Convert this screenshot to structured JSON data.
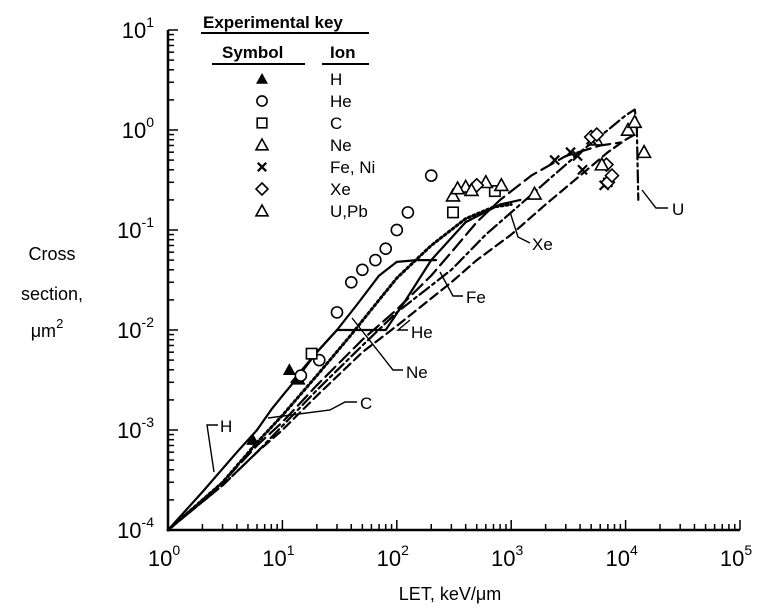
{
  "chart_data": {
    "type": "scatter",
    "title": "",
    "xlabel": "LET, keV/μm",
    "ylabel_lines": [
      "Cross",
      "section,"
    ],
    "ylabel_unit": {
      "base": "μm",
      "sup": "2"
    },
    "x_scale": "log",
    "y_scale": "log",
    "xlim": [
      1,
      100000
    ],
    "ylim": [
      0.0001,
      10
    ],
    "x_ticks": [
      {
        "base": "10",
        "exp": "0"
      },
      {
        "base": "10",
        "exp": "1"
      },
      {
        "base": "10",
        "exp": "2"
      },
      {
        "base": "10",
        "exp": "3"
      },
      {
        "base": "10",
        "exp": "4"
      },
      {
        "base": "10",
        "exp": "5"
      }
    ],
    "y_ticks": [
      {
        "base": "10",
        "exp": "-4"
      },
      {
        "base": "10",
        "exp": "-3"
      },
      {
        "base": "10",
        "exp": "-2"
      },
      {
        "base": "10",
        "exp": "-1"
      },
      {
        "base": "10",
        "exp": "0"
      },
      {
        "base": "10",
        "exp": "1"
      }
    ],
    "legend": {
      "title": "Experimental key",
      "col1": "Symbol",
      "col2": "Ion",
      "placement": "top-left"
    },
    "series": [
      {
        "name": "H",
        "marker": "triangle-filled",
        "points": [
          [
            5.5,
            0.0008
          ],
          [
            11.5,
            0.004
          ],
          [
            14,
            0.0032
          ]
        ]
      },
      {
        "name": "He",
        "marker": "circle",
        "points": [
          [
            14.5,
            0.0035
          ],
          [
            21,
            0.005
          ],
          [
            30,
            0.015
          ],
          [
            40,
            0.03
          ],
          [
            50,
            0.04
          ],
          [
            65,
            0.05
          ],
          [
            80,
            0.065
          ],
          [
            100,
            0.1
          ],
          [
            125,
            0.15
          ],
          [
            200,
            0.35
          ]
        ]
      },
      {
        "name": "C",
        "marker": "square",
        "points": [
          [
            18,
            0.0058
          ],
          [
            310,
            0.15
          ],
          [
            720,
            0.245
          ]
        ]
      },
      {
        "name": "Ne",
        "marker": "triangle-open",
        "points": [
          [
            310,
            0.22
          ],
          [
            400,
            0.27
          ],
          [
            600,
            0.3
          ],
          [
            820,
            0.28
          ],
          [
            5500,
            0.8
          ]
        ]
      },
      {
        "name": "Fe, Ni",
        "marker": "x",
        "points": [
          [
            2400,
            0.5
          ],
          [
            3300,
            0.6
          ],
          [
            3800,
            0.55
          ],
          [
            4200,
            0.4
          ],
          [
            5000,
            0.8
          ],
          [
            6500,
            0.28
          ],
          [
            7000,
            0.3
          ]
        ]
      },
      {
        "name": "Xe",
        "marker": "diamond",
        "points": [
          [
            500,
            0.28
          ],
          [
            5000,
            0.85
          ],
          [
            5600,
            0.9
          ],
          [
            6800,
            0.45
          ],
          [
            7000,
            0.3
          ],
          [
            7600,
            0.35
          ]
        ]
      },
      {
        "name": "U,Pb",
        "marker": "triangle-open",
        "points": [
          [
            340,
            0.26
          ],
          [
            450,
            0.25
          ],
          [
            1600,
            0.23
          ],
          [
            6200,
            0.45
          ],
          [
            10500,
            1.0
          ],
          [
            12000,
            1.2
          ],
          [
            14500,
            0.6
          ]
        ]
      }
    ],
    "curves": [
      {
        "name": "H",
        "style": "solid",
        "points": [
          [
            1,
            0.0001
          ],
          [
            2,
            0.00024
          ],
          [
            4,
            0.0006
          ],
          [
            6,
            0.001
          ],
          [
            8,
            0.0016
          ],
          [
            10,
            0.0022
          ]
        ]
      },
      {
        "name": "He",
        "style": "solid",
        "points": [
          [
            10,
            0.0022
          ],
          [
            14,
            0.0035
          ],
          [
            20,
            0.006
          ],
          [
            30,
            0.01
          ],
          [
            45,
            0.018
          ],
          [
            70,
            0.035
          ],
          [
            100,
            0.048
          ],
          [
            150,
            0.05
          ],
          [
            200,
            0.05
          ],
          [
            220,
            0.05
          ]
        ]
      },
      {
        "name": "C",
        "style": "dotted",
        "points": [
          [
            1,
            0.0001
          ],
          [
            3,
            0.0003
          ],
          [
            6,
            0.00075
          ],
          [
            10,
            0.0014
          ],
          [
            20,
            0.0035
          ],
          [
            40,
            0.009
          ],
          [
            70,
            0.02
          ],
          [
            100,
            0.033
          ],
          [
            200,
            0.07
          ],
          [
            400,
            0.13
          ],
          [
            700,
            0.17
          ],
          [
            1000,
            0.18
          ]
        ]
      },
      {
        "name": "Ne",
        "style": "solid",
        "points": [
          [
            12,
            0.003
          ],
          [
            20,
            0.006
          ],
          [
            30,
            0.01
          ],
          [
            80,
            0.01
          ],
          [
            120,
            0.02
          ],
          [
            200,
            0.05
          ],
          [
            400,
            0.12
          ],
          [
            800,
            0.18
          ],
          [
            1200,
            0.2
          ]
        ]
      },
      {
        "name": "Fe",
        "style": "long-dash",
        "points": [
          [
            1,
            0.0001
          ],
          [
            3,
            0.0003
          ],
          [
            6,
            0.0007
          ],
          [
            10,
            0.0012
          ],
          [
            20,
            0.0028
          ],
          [
            50,
            0.008
          ],
          [
            100,
            0.016
          ],
          [
            200,
            0.035
          ],
          [
            300,
            0.06
          ],
          [
            500,
            0.12
          ],
          [
            800,
            0.2
          ],
          [
            1500,
            0.35
          ],
          [
            3000,
            0.55
          ],
          [
            6000,
            0.7
          ],
          [
            9000,
            0.75
          ]
        ]
      },
      {
        "name": "Xe",
        "style": "dashed",
        "points": [
          [
            1,
            0.0001
          ],
          [
            3,
            0.00028
          ],
          [
            6,
            0.0006
          ],
          [
            10,
            0.001
          ],
          [
            20,
            0.0022
          ],
          [
            50,
            0.006
          ],
          [
            100,
            0.011
          ],
          [
            300,
            0.03
          ],
          [
            500,
            0.05
          ],
          [
            1000,
            0.09
          ],
          [
            2000,
            0.18
          ],
          [
            4000,
            0.35
          ],
          [
            7000,
            0.6
          ],
          [
            10000,
            0.8
          ],
          [
            12000,
            0.9
          ]
        ]
      },
      {
        "name": "U",
        "style": "dash-dot",
        "points": [
          [
            1,
            0.0001
          ],
          [
            3,
            0.00028
          ],
          [
            6,
            0.0006
          ],
          [
            10,
            0.0011
          ],
          [
            20,
            0.0025
          ],
          [
            50,
            0.007
          ],
          [
            100,
            0.015
          ],
          [
            300,
            0.04
          ],
          [
            600,
            0.09
          ],
          [
            1000,
            0.15
          ],
          [
            2000,
            0.3
          ],
          [
            4000,
            0.6
          ],
          [
            7000,
            1.0
          ],
          [
            10000,
            1.4
          ],
          [
            12000,
            1.6
          ],
          [
            12500,
            1.2
          ],
          [
            12700,
            0.5
          ],
          [
            12900,
            0.2
          ]
        ]
      }
    ],
    "annotations": [
      "H",
      "He",
      "C",
      "Ne",
      "Fe",
      "Xe",
      "U"
    ]
  }
}
